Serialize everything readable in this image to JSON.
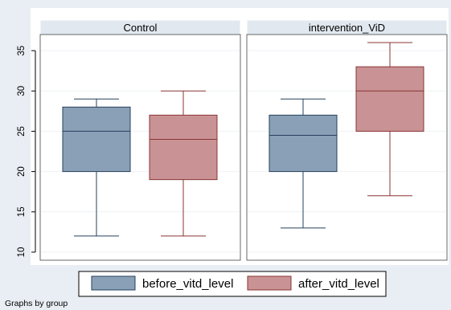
{
  "chart_data": {
    "type": "boxplot",
    "panels": [
      {
        "title": "Control",
        "boxes": [
          {
            "series": "before_vitd_level",
            "min": 12,
            "q1": 20,
            "median": 25,
            "q3": 28,
            "max": 29
          },
          {
            "series": "after_vitd_level",
            "min": 12,
            "q1": 19,
            "median": 24,
            "q3": 27,
            "max": 30
          }
        ]
      },
      {
        "title": "intervention_ViD",
        "boxes": [
          {
            "series": "before_vitd_level",
            "min": 13,
            "q1": 20,
            "median": 24.5,
            "q3": 27,
            "max": 29
          },
          {
            "series": "after_vitd_level",
            "min": 17,
            "q1": 25,
            "median": 30,
            "q3": 33,
            "max": 36
          }
        ]
      }
    ],
    "ylim": [
      9,
      37
    ],
    "yticks": [
      10,
      15,
      20,
      25,
      30,
      35
    ],
    "grid": true,
    "legend": {
      "position": "bottom",
      "entries": [
        {
          "label": "before_vitd_level",
          "fill": "#8aa0b7",
          "stroke": "#26405c"
        },
        {
          "label": "after_vitd_level",
          "fill": "#c99395",
          "stroke": "#8a3434"
        }
      ]
    },
    "note": "Graphs by group"
  },
  "colors": {
    "background": "#e8eef3",
    "panel": "#ffffff",
    "strip": "#e1e8ef",
    "grid": "#eef2f6"
  }
}
